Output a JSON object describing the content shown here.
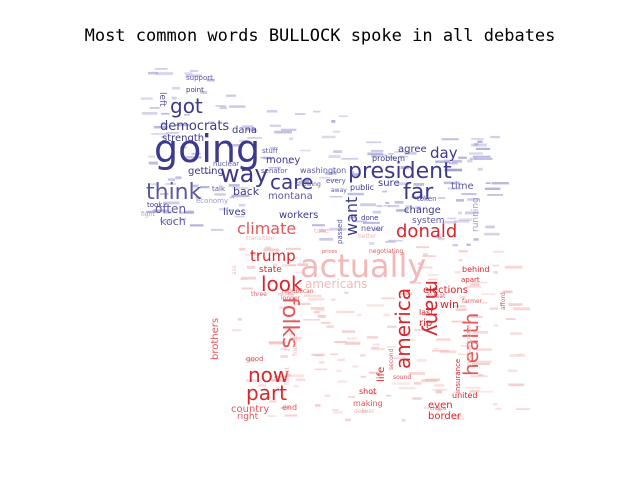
{
  "title": "Most common words BULLOCK spoke in all debates",
  "colors": {
    "blue_dark": "#3d3a8c",
    "blue_mid": "#5b57a6",
    "blue_light": "#9d9ad0",
    "red_dark": "#d8262b",
    "red_mid": "#e0585c",
    "red_light": "#f1b9b9"
  },
  "words": [
    {
      "text": "going",
      "color": "blue_dark"
    },
    {
      "text": "got",
      "color": "blue_dark"
    },
    {
      "text": "democrats",
      "color": "blue_dark"
    },
    {
      "text": "think",
      "color": "blue_mid"
    },
    {
      "text": "way",
      "color": "blue_dark"
    },
    {
      "text": "care",
      "color": "blue_dark"
    },
    {
      "text": "president",
      "color": "blue_dark"
    },
    {
      "text": "far",
      "color": "blue_dark"
    },
    {
      "text": "day",
      "color": "blue_dark"
    },
    {
      "text": "want",
      "color": "blue_dark"
    },
    {
      "text": "donald",
      "color": "red_dark"
    },
    {
      "text": "climate",
      "color": "red_mid"
    },
    {
      "text": "often",
      "color": "blue_mid"
    },
    {
      "text": "koch",
      "color": "blue_mid"
    },
    {
      "text": "strength",
      "color": "blue_dark"
    },
    {
      "text": "dana",
      "color": "blue_dark"
    },
    {
      "text": "money",
      "color": "blue_dark"
    },
    {
      "text": "montana",
      "color": "blue_mid"
    },
    {
      "text": "back",
      "color": "blue_dark"
    },
    {
      "text": "getting",
      "color": "blue_dark"
    },
    {
      "text": "lives",
      "color": "blue_dark"
    },
    {
      "text": "workers",
      "color": "blue_dark"
    },
    {
      "text": "agree",
      "color": "blue_dark"
    },
    {
      "text": "sure",
      "color": "blue_dark"
    },
    {
      "text": "change",
      "color": "blue_dark"
    },
    {
      "text": "system",
      "color": "blue_mid"
    },
    {
      "text": "time",
      "color": "blue_mid"
    },
    {
      "text": "problem",
      "color": "blue_dark"
    },
    {
      "text": "public",
      "color": "blue_dark"
    },
    {
      "text": "never",
      "color": "blue_mid"
    },
    {
      "text": "done",
      "color": "blue_dark"
    },
    {
      "text": "washington",
      "color": "blue_mid"
    },
    {
      "text": "senator",
      "color": "blue_mid"
    },
    {
      "text": "every",
      "color": "blue_mid"
    },
    {
      "text": "support",
      "color": "blue_mid"
    },
    {
      "text": "point",
      "color": "blue_dark"
    },
    {
      "text": "left",
      "color": "blue_mid"
    },
    {
      "text": "took",
      "color": "blue_dark"
    },
    {
      "text": "running",
      "color": "blue_light"
    },
    {
      "text": "stuff",
      "color": "blue_mid"
    },
    {
      "text": "talk",
      "color": "blue_mid"
    },
    {
      "text": "nuclear",
      "color": "blue_mid"
    },
    {
      "text": "showing",
      "color": "blue_mid"
    },
    {
      "text": "passed",
      "color": "blue_mid"
    },
    {
      "text": "token",
      "color": "blue_mid"
    },
    {
      "text": "away",
      "color": "blue_mid"
    },
    {
      "text": "economy",
      "color": "blue_light"
    },
    {
      "text": "trade",
      "color": "blue_light"
    },
    {
      "text": "fight",
      "color": "blue_light"
    },
    {
      "text": "take",
      "color": "red_light"
    },
    {
      "text": "better",
      "color": "red_light"
    },
    {
      "text": "actually",
      "color": "red_light"
    },
    {
      "text": "trump",
      "color": "red_dark"
    },
    {
      "text": "state",
      "color": "red_dark"
    },
    {
      "text": "look",
      "color": "red_dark"
    },
    {
      "text": "americans",
      "color": "red_light"
    },
    {
      "text": "folks",
      "color": "red_mid"
    },
    {
      "text": "america",
      "color": "red_dark"
    },
    {
      "text": "many",
      "color": "red_dark"
    },
    {
      "text": "health",
      "color": "red_mid"
    },
    {
      "text": "now",
      "color": "red_dark"
    },
    {
      "text": "part",
      "color": "red_dark"
    },
    {
      "text": "country",
      "color": "red_mid"
    },
    {
      "text": "right",
      "color": "red_mid"
    },
    {
      "text": "end",
      "color": "red_mid"
    },
    {
      "text": "brothers",
      "color": "red_mid"
    },
    {
      "text": "republican",
      "color": "red_mid"
    },
    {
      "text": "longer",
      "color": "red_mid"
    },
    {
      "text": "three",
      "color": "red_mid"
    },
    {
      "text": "good",
      "color": "red_mid"
    },
    {
      "text": "elections",
      "color": "red_dark"
    },
    {
      "text": "win",
      "color": "red_dark"
    },
    {
      "text": "behind",
      "color": "red_dark"
    },
    {
      "text": "apart",
      "color": "red_dark"
    },
    {
      "text": "defeat",
      "color": "red_mid"
    },
    {
      "text": "farmer",
      "color": "red_mid"
    },
    {
      "text": "last",
      "color": "red_dark"
    },
    {
      "text": "rip",
      "color": "red_dark"
    },
    {
      "text": "insurance",
      "color": "red_dark"
    },
    {
      "text": "even",
      "color": "red_dark"
    },
    {
      "text": "united",
      "color": "red_dark"
    },
    {
      "text": "border",
      "color": "red_dark"
    },
    {
      "text": "making",
      "color": "red_mid"
    },
    {
      "text": "shot",
      "color": "red_dark"
    },
    {
      "text": "life",
      "color": "red_dark"
    },
    {
      "text": "second",
      "color": "red_mid"
    },
    {
      "text": "sound",
      "color": "red_mid"
    },
    {
      "text": "negotiating",
      "color": "red_mid"
    },
    {
      "text": "prices",
      "color": "red_mid"
    },
    {
      "text": "afford",
      "color": "red_mid"
    },
    {
      "text": "deliver",
      "color": "red_light"
    },
    {
      "text": "choice",
      "color": "red_mid"
    },
    {
      "text": "forget",
      "color": "red_light"
    },
    {
      "text": "transition",
      "color": "red_light"
    },
    {
      "text": "ass",
      "color": "red_light"
    },
    {
      "text": "friends",
      "color": "red_light"
    },
    {
      "text": "prescription",
      "color": "red_light"
    }
  ]
}
